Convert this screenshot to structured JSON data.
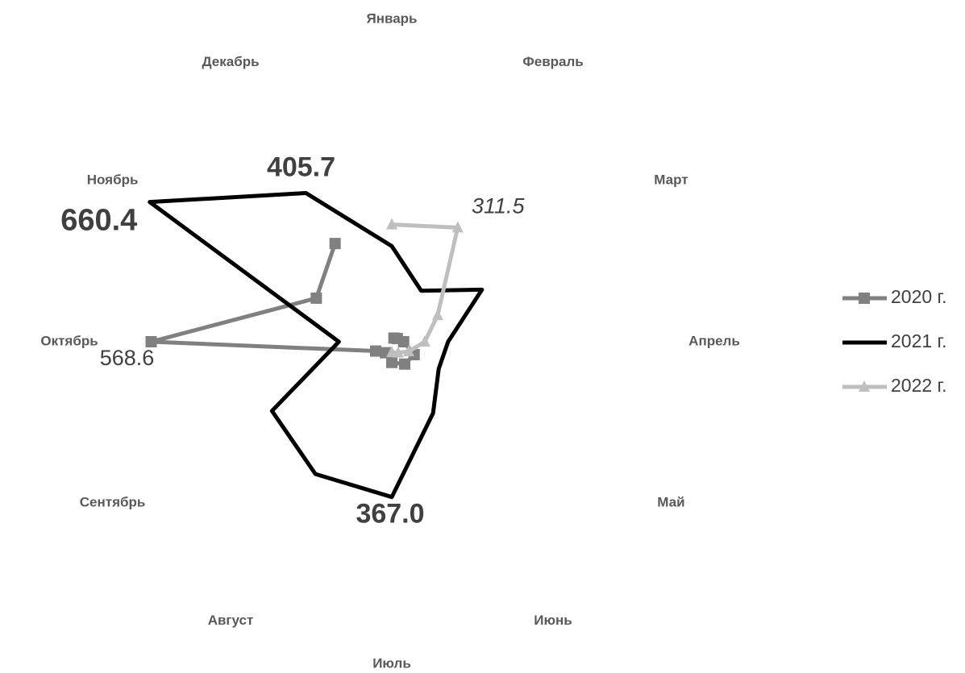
{
  "chart_data": {
    "type": "radar",
    "categories": [
      "Январь",
      "Февраль",
      "Март",
      "Апрель",
      "Май",
      "Июнь",
      "Июль",
      "Август",
      "Сентябрь",
      "Октябрь",
      "Ноябрь",
      "Декабрь"
    ],
    "rlim": [
      0,
      800
    ],
    "series": [
      {
        "name": "2020 г.",
        "color": "#808080",
        "marker": "square",
        "values": [
          null,
          10,
          15,
          28,
          61,
          61,
          49,
          30,
          44,
          568.6,
          206,
          268
        ]
      },
      {
        "name": "2021 г.",
        "color": "#000000",
        "marker": "none",
        "values": [
          226,
          139,
          246,
          133,
          128,
          195,
          367,
          361,
          327,
          125,
          660.4,
          405.7
        ],
        "value_labels": [
          null,
          null,
          null,
          null,
          null,
          null,
          "367.0",
          null,
          null,
          null,
          "660.4",
          "405.7"
        ]
      },
      {
        "name": "2022 г.",
        "color": "#bfbfbf",
        "marker": "triangle",
        "values": [
          277,
          311.5,
          125,
          78,
          46,
          30,
          25,
          null,
          null,
          null,
          null,
          null
        ]
      }
    ],
    "legend": "right"
  }
}
